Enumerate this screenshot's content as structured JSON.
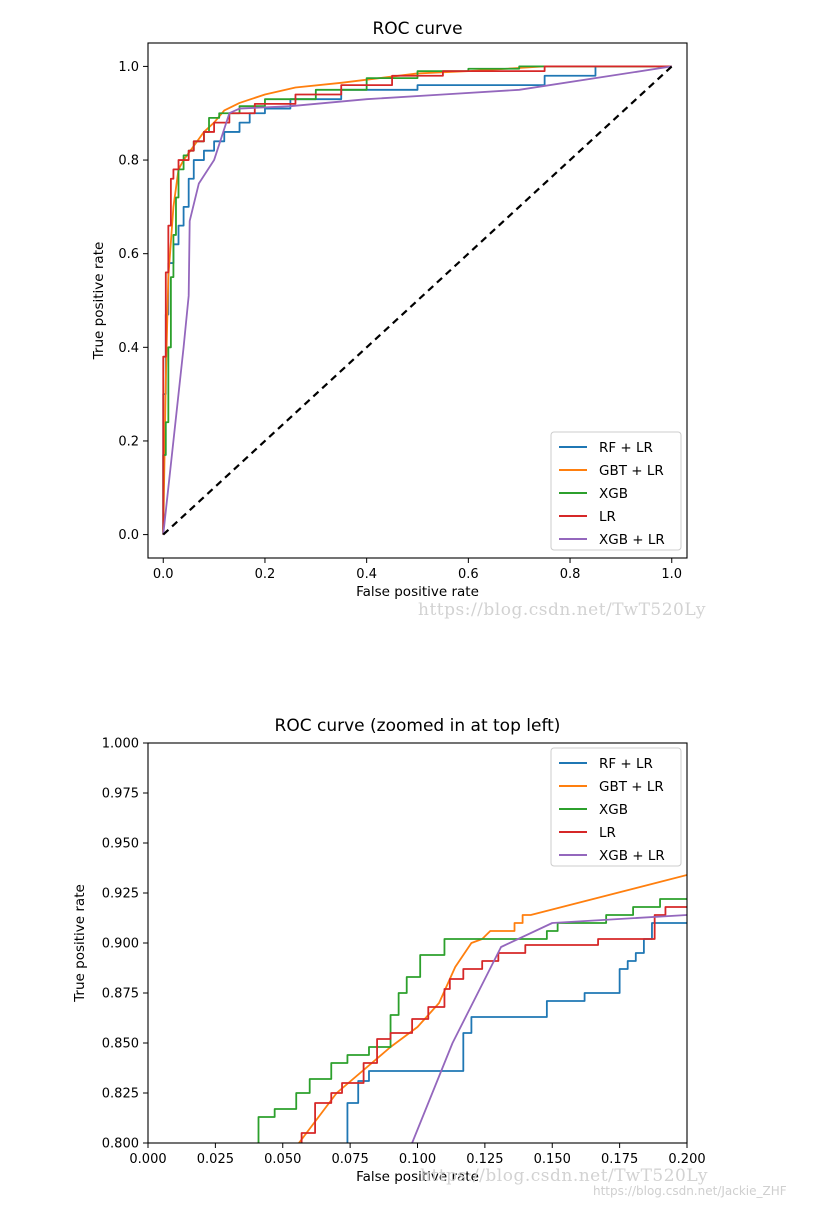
{
  "colors": {
    "RF + LR": "#1f77b4",
    "GBT + LR": "#ff7f0e",
    "XGB": "#2ca02c",
    "LR": "#d62728",
    "XGB + LR": "#9467bd",
    "diagonal": "#000000"
  },
  "watermarks": {
    "top": "https://blog.csdn.net/TwT520Ly",
    "bottom": "https://blog.csdn.net/TwT520Ly",
    "corner": "https://blog.csdn.net/Jackie_ZHF"
  },
  "chart_data": [
    {
      "type": "line",
      "title": "ROC curve",
      "xlabel": "False positive rate",
      "ylabel": "True positive rate",
      "xlim": [
        -0.03,
        1.03
      ],
      "ylim": [
        -0.05,
        1.05
      ],
      "xticks": [
        0.0,
        0.2,
        0.4,
        0.6,
        0.8,
        1.0
      ],
      "xtick_labels": [
        "0.0",
        "0.2",
        "0.4",
        "0.6",
        "0.8",
        "1.0"
      ],
      "yticks": [
        0.0,
        0.2,
        0.4,
        0.6,
        0.8,
        1.0
      ],
      "ytick_labels": [
        "0.0",
        "0.2",
        "0.4",
        "0.6",
        "0.8",
        "1.0"
      ],
      "legend_position": "lower-right",
      "grid": false,
      "series": [
        {
          "name": "RF + LR",
          "step": true,
          "x": [
            0,
            0,
            0.005,
            0.005,
            0.01,
            0.01,
            0.02,
            0.02,
            0.03,
            0.03,
            0.04,
            0.04,
            0.05,
            0.05,
            0.06,
            0.06,
            0.08,
            0.08,
            0.1,
            0.1,
            0.12,
            0.12,
            0.15,
            0.15,
            0.17,
            0.17,
            0.2,
            0.2,
            0.25,
            0.25,
            0.35,
            0.35,
            0.5,
            0.5,
            0.75,
            0.75,
            0.85,
            0.85,
            1.0
          ],
          "y": [
            0,
            0.3,
            0.3,
            0.47,
            0.47,
            0.58,
            0.58,
            0.62,
            0.62,
            0.66,
            0.66,
            0.7,
            0.7,
            0.76,
            0.76,
            0.8,
            0.8,
            0.82,
            0.82,
            0.84,
            0.84,
            0.86,
            0.86,
            0.88,
            0.88,
            0.9,
            0.9,
            0.91,
            0.91,
            0.93,
            0.93,
            0.95,
            0.95,
            0.96,
            0.96,
            0.98,
            0.98,
            1.0,
            1.0
          ]
        },
        {
          "name": "GBT + LR",
          "step": false,
          "x": [
            0,
            0.005,
            0.01,
            0.02,
            0.03,
            0.04,
            0.06,
            0.08,
            0.1,
            0.12,
            0.15,
            0.2,
            0.26,
            0.35,
            0.5,
            0.6,
            0.75,
            1.0
          ],
          "y": [
            0,
            0.33,
            0.55,
            0.7,
            0.78,
            0.8,
            0.83,
            0.86,
            0.88,
            0.906,
            0.922,
            0.94,
            0.955,
            0.965,
            0.985,
            0.99,
            1.0,
            1.0
          ]
        },
        {
          "name": "XGB",
          "step": true,
          "x": [
            0,
            0,
            0.005,
            0.005,
            0.01,
            0.01,
            0.015,
            0.015,
            0.02,
            0.02,
            0.025,
            0.025,
            0.03,
            0.03,
            0.04,
            0.04,
            0.05,
            0.05,
            0.06,
            0.06,
            0.08,
            0.08,
            0.09,
            0.09,
            0.11,
            0.11,
            0.15,
            0.15,
            0.2,
            0.2,
            0.3,
            0.3,
            0.4,
            0.4,
            0.5,
            0.5,
            0.6,
            0.6,
            0.7,
            0.7,
            1.0
          ],
          "y": [
            0,
            0.17,
            0.17,
            0.24,
            0.24,
            0.4,
            0.4,
            0.55,
            0.55,
            0.64,
            0.64,
            0.72,
            0.72,
            0.78,
            0.78,
            0.81,
            0.81,
            0.82,
            0.82,
            0.84,
            0.84,
            0.86,
            0.86,
            0.89,
            0.89,
            0.9,
            0.9,
            0.915,
            0.915,
            0.93,
            0.93,
            0.95,
            0.95,
            0.975,
            0.975,
            0.99,
            0.99,
            0.995,
            0.995,
            1.0,
            1.0
          ]
        },
        {
          "name": "LR",
          "step": true,
          "x": [
            0,
            0,
            0.005,
            0.005,
            0.01,
            0.01,
            0.015,
            0.015,
            0.02,
            0.02,
            0.03,
            0.03,
            0.05,
            0.05,
            0.06,
            0.06,
            0.08,
            0.08,
            0.1,
            0.1,
            0.13,
            0.13,
            0.18,
            0.18,
            0.26,
            0.26,
            0.35,
            0.35,
            0.45,
            0.45,
            0.55,
            0.55,
            0.75,
            0.75,
            1.0
          ],
          "y": [
            0,
            0.38,
            0.38,
            0.56,
            0.56,
            0.66,
            0.66,
            0.76,
            0.76,
            0.78,
            0.78,
            0.8,
            0.8,
            0.82,
            0.82,
            0.84,
            0.84,
            0.86,
            0.86,
            0.88,
            0.88,
            0.9,
            0.9,
            0.92,
            0.92,
            0.94,
            0.94,
            0.96,
            0.96,
            0.98,
            0.98,
            0.99,
            0.99,
            1.0,
            1.0
          ]
        },
        {
          "name": "XGB + LR",
          "step": false,
          "x": [
            0,
            0.04,
            0.05,
            0.052,
            0.07,
            0.1,
            0.13,
            0.15,
            0.25,
            0.4,
            0.55,
            0.7,
            1.0
          ],
          "y": [
            0,
            0.4,
            0.51,
            0.67,
            0.75,
            0.8,
            0.9,
            0.91,
            0.915,
            0.93,
            0.94,
            0.95,
            1.0
          ]
        },
        {
          "name": "",
          "style": "dashed",
          "x": [
            0,
            1
          ],
          "y": [
            0,
            1
          ]
        }
      ]
    },
    {
      "type": "line",
      "title": "ROC curve (zoomed in at top left)",
      "xlabel": "False positive rate",
      "ylabel": "True positive rate",
      "xlim": [
        0.0,
        0.2
      ],
      "ylim": [
        0.8,
        1.0
      ],
      "xticks": [
        0.0,
        0.025,
        0.05,
        0.075,
        0.1,
        0.125,
        0.15,
        0.175,
        0.2
      ],
      "xtick_labels": [
        "0.000",
        "0.025",
        "0.050",
        "0.075",
        "0.100",
        "0.125",
        "0.150",
        "0.175",
        "0.200"
      ],
      "yticks": [
        0.8,
        0.825,
        0.85,
        0.875,
        0.9,
        0.925,
        0.95,
        0.975,
        1.0
      ],
      "ytick_labels": [
        "0.800",
        "0.825",
        "0.850",
        "0.875",
        "0.900",
        "0.925",
        "0.950",
        "0.975",
        "1.000"
      ],
      "legend_position": "top-right",
      "grid": false,
      "series": [
        {
          "name": "RF + LR",
          "step": true,
          "x": [
            0.074,
            0.074,
            0.078,
            0.078,
            0.082,
            0.082,
            0.117,
            0.117,
            0.12,
            0.12,
            0.148,
            0.148,
            0.162,
            0.162,
            0.175,
            0.175,
            0.178,
            0.178,
            0.181,
            0.181,
            0.184,
            0.184,
            0.187,
            0.187,
            0.2
          ],
          "y": [
            0.8,
            0.82,
            0.82,
            0.831,
            0.831,
            0.836,
            0.836,
            0.855,
            0.855,
            0.863,
            0.863,
            0.871,
            0.871,
            0.875,
            0.875,
            0.887,
            0.887,
            0.891,
            0.891,
            0.895,
            0.895,
            0.902,
            0.902,
            0.91,
            0.91
          ]
        },
        {
          "name": "GBT + LR",
          "step": false,
          "x": [
            0.056,
            0.07,
            0.09,
            0.1,
            0.108,
            0.114,
            0.12,
            0.124,
            0.127,
            0.136,
            0.136,
            0.139,
            0.139,
            0.142,
            0.2
          ],
          "y": [
            0.8,
            0.825,
            0.848,
            0.858,
            0.87,
            0.888,
            0.9,
            0.902,
            0.906,
            0.906,
            0.91,
            0.91,
            0.914,
            0.914,
            0.934
          ]
        },
        {
          "name": "XGB",
          "step": true,
          "x": [
            0.041,
            0.041,
            0.047,
            0.047,
            0.055,
            0.055,
            0.06,
            0.06,
            0.068,
            0.068,
            0.074,
            0.074,
            0.082,
            0.082,
            0.09,
            0.09,
            0.093,
            0.093,
            0.096,
            0.096,
            0.101,
            0.101,
            0.11,
            0.11,
            0.148,
            0.148,
            0.152,
            0.152,
            0.17,
            0.17,
            0.175,
            0.175,
            0.18,
            0.18,
            0.183,
            0.183,
            0.19,
            0.19,
            0.2
          ],
          "y": [
            0.8,
            0.813,
            0.813,
            0.817,
            0.817,
            0.825,
            0.825,
            0.832,
            0.832,
            0.84,
            0.84,
            0.844,
            0.844,
            0.848,
            0.848,
            0.864,
            0.864,
            0.875,
            0.875,
            0.883,
            0.883,
            0.894,
            0.894,
            0.902,
            0.902,
            0.906,
            0.906,
            0.91,
            0.91,
            0.914,
            0.914,
            0.914,
            0.914,
            0.918,
            0.918,
            0.918,
            0.918,
            0.922,
            0.922
          ]
        },
        {
          "name": "LR",
          "step": true,
          "x": [
            0.057,
            0.057,
            0.062,
            0.062,
            0.068,
            0.068,
            0.072,
            0.072,
            0.08,
            0.08,
            0.085,
            0.085,
            0.09,
            0.09,
            0.098,
            0.098,
            0.104,
            0.104,
            0.11,
            0.11,
            0.112,
            0.112,
            0.117,
            0.117,
            0.124,
            0.124,
            0.13,
            0.13,
            0.14,
            0.14,
            0.167,
            0.167,
            0.188,
            0.188,
            0.192,
            0.192,
            0.2
          ],
          "y": [
            0.8,
            0.805,
            0.805,
            0.82,
            0.82,
            0.825,
            0.825,
            0.83,
            0.83,
            0.84,
            0.84,
            0.852,
            0.852,
            0.855,
            0.855,
            0.862,
            0.862,
            0.868,
            0.868,
            0.877,
            0.877,
            0.882,
            0.882,
            0.887,
            0.887,
            0.891,
            0.891,
            0.895,
            0.895,
            0.899,
            0.899,
            0.902,
            0.902,
            0.914,
            0.914,
            0.918,
            0.918
          ]
        },
        {
          "name": "XGB + LR",
          "step": false,
          "x": [
            0.098,
            0.113,
            0.131,
            0.15,
            0.2
          ],
          "y": [
            0.8,
            0.85,
            0.898,
            0.91,
            0.914
          ]
        }
      ]
    }
  ]
}
